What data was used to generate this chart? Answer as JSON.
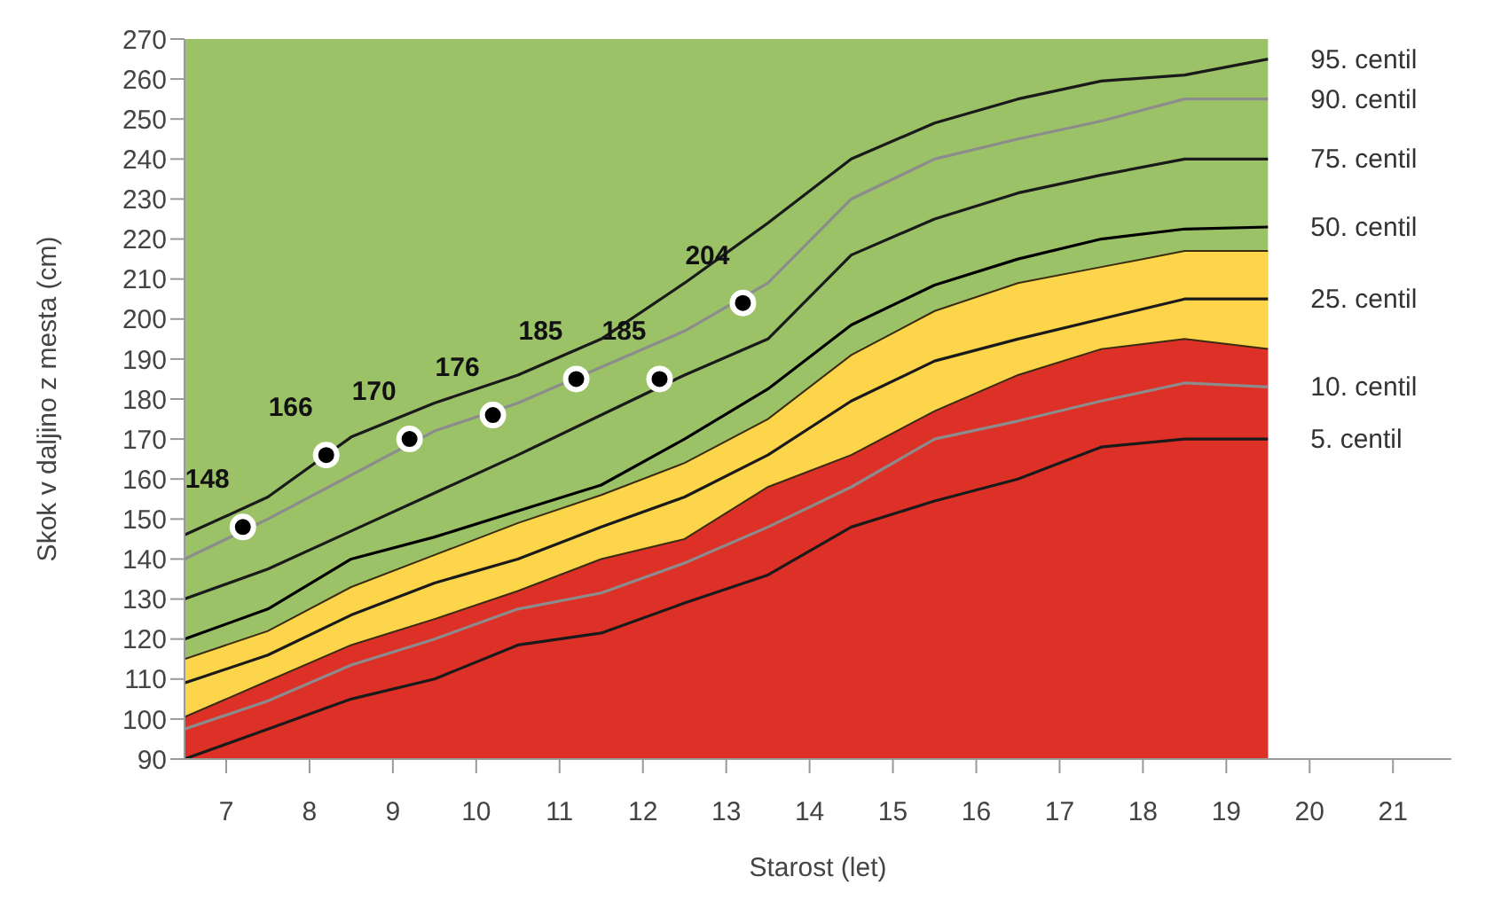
{
  "chart_data": {
    "type": "line",
    "xlabel": "Starost (let)",
    "ylabel": "Skok v daljino z mesta (cm)",
    "x": [
      6.5,
      7.5,
      8.5,
      9.5,
      10.5,
      11.5,
      12.5,
      13.5,
      14.5,
      15.5,
      16.5,
      17.5,
      18.5,
      19.5
    ],
    "xlim": [
      6.5,
      21.7
    ],
    "xticks": [
      7,
      8,
      9,
      10,
      11,
      12,
      13,
      14,
      15,
      16,
      17,
      18,
      19,
      20,
      21
    ],
    "ylim": [
      90,
      270
    ],
    "yticks": [
      90,
      100,
      110,
      120,
      130,
      140,
      150,
      160,
      170,
      180,
      190,
      200,
      210,
      220,
      230,
      240,
      250,
      260,
      270
    ],
    "grid": false,
    "legend": false,
    "marker": "none",
    "bands": [
      {
        "axis": "x",
        "from": 6.5,
        "to": 19.5,
        "color": "#9bc267"
      }
    ],
    "series": [
      {
        "type": "area",
        "color": "#fdd54a",
        "values": [
          115,
          122,
          133,
          141,
          149,
          156,
          164,
          175,
          191,
          202,
          209,
          213,
          217,
          217
        ]
      },
      {
        "type": "area",
        "color": "#dd3127",
        "values": [
          100.5,
          109.5,
          118.5,
          125,
          132,
          140,
          145,
          158,
          166,
          177,
          186,
          192.5,
          195,
          192.5
        ]
      },
      {
        "name": "95. centil",
        "color": "#1a1a1a",
        "values": [
          146,
          155.5,
          170.5,
          179,
          186,
          195,
          209,
          224,
          240,
          249,
          255,
          259.5,
          261,
          265
        ]
      },
      {
        "name": "90. centil",
        "color": "#8c8c8c",
        "values": [
          140,
          150,
          161,
          172,
          179,
          188,
          197,
          209,
          230,
          240,
          245,
          249.5,
          255,
          255
        ]
      },
      {
        "name": "75. centil",
        "color": "#1a1a1a",
        "values": [
          130,
          137.5,
          147,
          156.5,
          166,
          176,
          186,
          195,
          216,
          225,
          231.5,
          236,
          240,
          240
        ]
      },
      {
        "name": "50. centil",
        "color": "#000000",
        "values": [
          120,
          127.5,
          140,
          145.5,
          152,
          158.5,
          170,
          182.5,
          198.5,
          208.5,
          215,
          220,
          222.5,
          223
        ]
      },
      {
        "name": "25. centil",
        "color": "#1a1a1a",
        "values": [
          109,
          116,
          126,
          134,
          140,
          148,
          155.5,
          166,
          179.5,
          189.5,
          195,
          200,
          205,
          205
        ]
      },
      {
        "name": "10. centil",
        "color": "#8c8c8c",
        "values": [
          97.5,
          104.5,
          113.5,
          120,
          127.5,
          131.5,
          139,
          148,
          158,
          170,
          174.5,
          179.5,
          184,
          183
        ]
      },
      {
        "name": "5. centil",
        "color": "#1a1a1a",
        "values": [
          90,
          97.5,
          105,
          110,
          118.5,
          121.5,
          129,
          136,
          148,
          154.5,
          160,
          168,
          170,
          170
        ]
      },
      {
        "type": "scatter",
        "marker": "circle",
        "color": "#000000",
        "x": [
          7.2,
          8.2,
          9.2,
          10.2,
          11.2,
          12.2,
          13.2
        ],
        "values": [
          148,
          166,
          170,
          176,
          185,
          185,
          204
        ],
        "value_labels": [
          "148",
          "166",
          "170",
          "176",
          "185",
          "185",
          "204"
        ]
      }
    ]
  }
}
